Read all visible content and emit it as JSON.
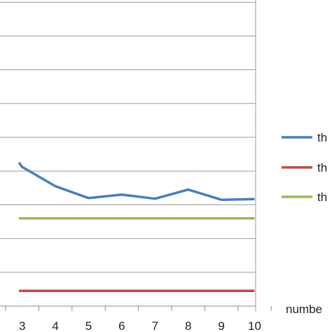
{
  "chart_data": {
    "type": "line",
    "x": [
      3,
      4,
      5,
      6,
      7,
      8,
      9,
      10
    ],
    "xticks": [
      "3",
      "4",
      "5",
      "6",
      "7",
      "8",
      "9",
      "10"
    ],
    "xlabel": "numbe",
    "grid": true,
    "series": [
      {
        "name": "th",
        "color": "#4a7ebb",
        "x": [
          2.9,
          3,
          4,
          5,
          6,
          7,
          8,
          9,
          10
        ],
        "values": [
          4.25,
          4.12,
          3.55,
          3.2,
          3.3,
          3.18,
          3.45,
          3.15,
          3.17
        ]
      },
      {
        "name": "th",
        "color": "#be4b48",
        "x": [
          2.9,
          10
        ],
        "values": [
          0.45,
          0.45
        ]
      },
      {
        "name": "th",
        "color": "#98b954",
        "x": [
          2.9,
          10
        ],
        "values": [
          2.6,
          2.6
        ]
      }
    ]
  }
}
